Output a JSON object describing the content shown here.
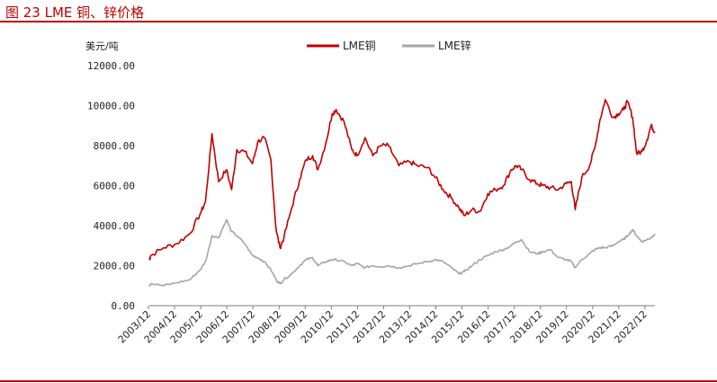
{
  "figure": {
    "title": "图 23 LME 铜、锌价格"
  },
  "chart_data": {
    "type": "line",
    "title": "图 23 LME 铜、锌价格",
    "ylabel": "美元/吨",
    "xlabel": "",
    "ylim": [
      0,
      12000
    ],
    "yticks": [
      "0.00",
      "2000.00",
      "4000.00",
      "6000.00",
      "8000.00",
      "10000.00",
      "12000.00"
    ],
    "yticks_values": [
      0,
      2000,
      4000,
      6000,
      8000,
      10000,
      12000
    ],
    "xticks": [
      "2003/12",
      "2004/12",
      "2005/12",
      "2006/12",
      "2007/12",
      "2008/12",
      "2009/12",
      "2010/12",
      "2011/12",
      "2012/12",
      "2013/12",
      "2014/12",
      "2015/12",
      "2016/12",
      "2017/12",
      "2018/12",
      "2019/12",
      "2020/12",
      "2021/12",
      "2022/12"
    ],
    "x": [
      2003.95,
      2004.0,
      2004.5,
      2005.0,
      2005.5,
      2005.9,
      2006.1,
      2006.35,
      2006.6,
      2006.9,
      2007.1,
      2007.3,
      2007.6,
      2007.9,
      2008.1,
      2008.35,
      2008.6,
      2008.8,
      2008.95,
      2009.1,
      2009.4,
      2009.7,
      2009.95,
      2010.2,
      2010.4,
      2010.7,
      2010.95,
      2011.1,
      2011.4,
      2011.7,
      2011.9,
      2012.2,
      2012.5,
      2012.8,
      2013.1,
      2013.5,
      2013.9,
      2014.2,
      2014.6,
      2014.9,
      2015.2,
      2015.5,
      2015.8,
      2016.0,
      2016.3,
      2016.6,
      2016.9,
      2017.2,
      2017.5,
      2017.8,
      2018.0,
      2018.2,
      2018.5,
      2018.8,
      2019.0,
      2019.3,
      2019.6,
      2019.9,
      2020.1,
      2020.25,
      2020.5,
      2020.8,
      2021.0,
      2021.2,
      2021.4,
      2021.7,
      2021.9,
      2022.1,
      2022.25,
      2022.45,
      2022.6,
      2022.8,
      2023.0,
      2023.15,
      2023.3
    ],
    "series": [
      {
        "name": "LME铜",
        "color": "#c00000",
        "values": [
          2300,
          2500,
          2900,
          3100,
          3600,
          4600,
          5200,
          8600,
          6200,
          6800,
          5800,
          7800,
          7700,
          7100,
          8200,
          8400,
          7300,
          3800,
          2900,
          3400,
          4900,
          6300,
          7300,
          7500,
          6800,
          8100,
          9600,
          9800,
          9200,
          7800,
          7500,
          8400,
          7500,
          8000,
          8000,
          7000,
          7200,
          7000,
          6900,
          6400,
          5800,
          5400,
          4900,
          4500,
          4800,
          4700,
          5600,
          5800,
          6000,
          6800,
          7000,
          6800,
          6300,
          6100,
          6000,
          5900,
          5800,
          6100,
          6200,
          4800,
          6400,
          7000,
          7900,
          9300,
          10300,
          9400,
          9600,
          9800,
          10200,
          9400,
          7600,
          7700,
          8300,
          9000,
          8700
        ]
      },
      {
        "name": "LME锌",
        "color": "#a6a6a6",
        "values": [
          1000,
          1100,
          1000,
          1150,
          1300,
          1800,
          2200,
          3500,
          3400,
          4300,
          3700,
          3500,
          3100,
          2500,
          2400,
          2200,
          1800,
          1300,
          1100,
          1300,
          1600,
          2000,
          2300,
          2400,
          2000,
          2200,
          2300,
          2300,
          2200,
          2000,
          2100,
          1900,
          2000,
          1950,
          2000,
          1900,
          2000,
          2100,
          2200,
          2300,
          2200,
          1900,
          1600,
          1700,
          2000,
          2300,
          2500,
          2700,
          2800,
          3000,
          3200,
          3300,
          2700,
          2600,
          2700,
          2800,
          2400,
          2300,
          2200,
          1900,
          2300,
          2600,
          2800,
          2900,
          2900,
          3000,
          3200,
          3300,
          3500,
          3800,
          3500,
          3200,
          3300,
          3400,
          3600
        ]
      }
    ],
    "legend": {
      "position": "top-center"
    },
    "grid": false
  }
}
